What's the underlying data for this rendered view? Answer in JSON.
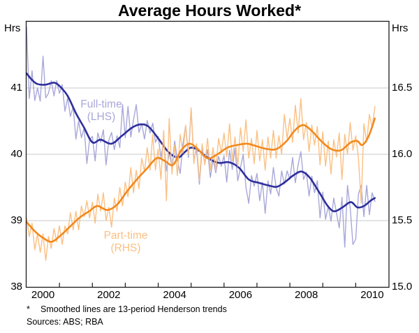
{
  "title": "Average Hours Worked*",
  "footnote": {
    "marker": "*",
    "text": "Smoothed lines are 13-period Henderson trends"
  },
  "sources": "Sources: ABS; RBA",
  "chart_data": {
    "type": "line",
    "title": "Average Hours Worked*",
    "grid": true,
    "legend_position": "none",
    "axis_left": {
      "unit": "Hrs",
      "min": 38,
      "max": 42,
      "gridlines": [
        39,
        40,
        41
      ],
      "tick_labels": [
        {
          "text": "41",
          "value": 41
        },
        {
          "text": "40",
          "value": 40
        },
        {
          "text": "39",
          "value": 39
        },
        {
          "text": "38",
          "value": 38
        }
      ]
    },
    "axis_right": {
      "unit": "Hrs",
      "min": 15.0,
      "max": 17.0,
      "tick_labels": [
        {
          "text": "16.5",
          "value": 16.5
        },
        {
          "text": "16.0",
          "value": 16.0
        },
        {
          "text": "15.5",
          "value": 15.5
        },
        {
          "text": "15.0",
          "value": 15.0
        }
      ]
    },
    "axis_x": {
      "min": 2000,
      "max": 2011,
      "ticks": [
        2001,
        2002,
        2003,
        2004,
        2005,
        2006,
        2007,
        2008,
        2009,
        2010
      ],
      "labels": [
        {
          "text": "2000",
          "pos": 2000.5
        },
        {
          "text": "2002",
          "pos": 2002.5
        },
        {
          "text": "2004",
          "pos": 2004.5
        },
        {
          "text": "2006",
          "pos": 2006.5
        },
        {
          "text": "2008",
          "pos": 2008.5
        },
        {
          "text": "2010",
          "pos": 2010.5
        }
      ]
    },
    "colors": {
      "fulltime_actual": "#a8a7d9",
      "fulltime_trend": "#2d2f9a",
      "parttime_actual": "#fbc083",
      "parttime_trend": "#f1891d",
      "gridline": "#c9c9c9",
      "frame": "#1a1a1a"
    },
    "series_labels": [
      {
        "line1": "Full-time",
        "line2": "(LHS)",
        "color": "#a8a7d9"
      },
      {
        "line1": "Part-time",
        "line2": "(RHS)",
        "color": "#fbc083"
      }
    ],
    "series": [
      {
        "name": "Full-time actual (monthly)",
        "axis": "left",
        "style": "raw",
        "color_key": "fulltime_actual",
        "width": 1.4,
        "x_start": 2000,
        "x_step_years": 0.0833333,
        "values": [
          41.92,
          40.84,
          41.26,
          40.81,
          41.0,
          40.8,
          41.48,
          40.85,
          40.92,
          41.11,
          40.88,
          41.11,
          40.92,
          41.05,
          40.65,
          40.85,
          40.57,
          40.72,
          40.23,
          40.5,
          40.25,
          40.4,
          39.86,
          40.22,
          40.27,
          39.9,
          40.32,
          40.18,
          40.37,
          39.84,
          40.21,
          40.33,
          40.07,
          40.28,
          40.1,
          40.75,
          40.25,
          40.72,
          40.26,
          40.52,
          40.75,
          40.33,
          40.46,
          40.23,
          40.51,
          40.32,
          40.47,
          40.18,
          40.27,
          39.95,
          40.21,
          39.75,
          40.03,
          39.8,
          40.2,
          39.92,
          39.71,
          40.15,
          40.43,
          39.95,
          40.68,
          39.92,
          40.08,
          39.55,
          40.09,
          39.86,
          40.07,
          39.65,
          39.93,
          39.72,
          39.97,
          39.82,
          39.98,
          39.58,
          40.06,
          39.77,
          40.09,
          39.6,
          39.8,
          40.0,
          39.5,
          39.26,
          39.68,
          39.52,
          39.71,
          39.3,
          39.58,
          39.11,
          39.6,
          39.4,
          39.8,
          39.49,
          39.37,
          39.75,
          39.55,
          39.75,
          39.62,
          39.95,
          39.57,
          39.84,
          40.04,
          39.62,
          39.73,
          39.37,
          39.67,
          39.42,
          39.6,
          39.04,
          39.43,
          39.02,
          39.22,
          38.99,
          39.34,
          39.11,
          38.89,
          39.35,
          38.6,
          39.53,
          39.19,
          38.64,
          38.72,
          39.4,
          39.53,
          39.06,
          39.53,
          39.09,
          39.42,
          39.29
        ]
      },
      {
        "name": "Full-time 13-period Henderson trend",
        "axis": "left",
        "style": "smooth",
        "color_key": "fulltime_trend",
        "width": 2.6,
        "points": [
          [
            2000.0,
            41.22
          ],
          [
            2000.17,
            41.12
          ],
          [
            2000.33,
            41.06
          ],
          [
            2000.58,
            41.05
          ],
          [
            2000.83,
            41.08
          ],
          [
            2001.0,
            41.03
          ],
          [
            2001.25,
            40.88
          ],
          [
            2001.5,
            40.62
          ],
          [
            2001.75,
            40.4
          ],
          [
            2002.0,
            40.18
          ],
          [
            2002.25,
            40.22
          ],
          [
            2002.58,
            40.16
          ],
          [
            2002.9,
            40.28
          ],
          [
            2003.2,
            40.4
          ],
          [
            2003.45,
            40.45
          ],
          [
            2003.7,
            40.42
          ],
          [
            2004.0,
            40.24
          ],
          [
            2004.3,
            40.04
          ],
          [
            2004.6,
            39.95
          ],
          [
            2004.8,
            40.03
          ],
          [
            2005.0,
            40.1
          ],
          [
            2005.25,
            40.05
          ],
          [
            2005.55,
            39.93
          ],
          [
            2005.85,
            39.87
          ],
          [
            2006.15,
            39.88
          ],
          [
            2006.45,
            39.8
          ],
          [
            2006.75,
            39.62
          ],
          [
            2007.05,
            39.57
          ],
          [
            2007.35,
            39.53
          ],
          [
            2007.6,
            39.51
          ],
          [
            2007.85,
            39.58
          ],
          [
            2008.1,
            39.68
          ],
          [
            2008.35,
            39.74
          ],
          [
            2008.6,
            39.65
          ],
          [
            2008.9,
            39.42
          ],
          [
            2009.15,
            39.22
          ],
          [
            2009.35,
            39.14
          ],
          [
            2009.6,
            39.2
          ],
          [
            2009.85,
            39.28
          ],
          [
            2010.05,
            39.2
          ],
          [
            2010.25,
            39.22
          ],
          [
            2010.45,
            39.3
          ],
          [
            2010.58,
            39.34
          ]
        ]
      },
      {
        "name": "Part-time actual (monthly)",
        "axis": "right",
        "style": "raw",
        "color_key": "parttime_actual",
        "width": 1.4,
        "x_start": 2000,
        "x_step_years": 0.0833333,
        "values": [
          15.52,
          15.38,
          15.48,
          15.28,
          15.4,
          15.26,
          15.4,
          15.2,
          15.38,
          15.29,
          15.44,
          15.34,
          15.46,
          15.32,
          15.46,
          15.4,
          15.56,
          15.43,
          15.57,
          15.43,
          15.61,
          15.53,
          15.65,
          15.52,
          15.64,
          15.48,
          15.7,
          15.57,
          15.71,
          15.5,
          15.6,
          15.45,
          15.67,
          15.57,
          15.75,
          15.61,
          15.79,
          15.68,
          15.9,
          15.71,
          15.88,
          15.74,
          15.97,
          15.87,
          16.05,
          15.88,
          16.15,
          15.88,
          16.04,
          15.81,
          16.18,
          15.65,
          16.27,
          15.85,
          16.07,
          15.84,
          16.15,
          16.01,
          16.22,
          16.0,
          16.35,
          15.93,
          16.08,
          15.8,
          16.08,
          15.92,
          16.12,
          15.88,
          16.05,
          15.88,
          16.12,
          16.01,
          16.16,
          15.98,
          16.23,
          15.95,
          16.13,
          15.91,
          16.2,
          16.02,
          16.26,
          15.97,
          16.12,
          15.93,
          16.18,
          15.95,
          16.11,
          15.88,
          16.13,
          15.97,
          16.18,
          15.97,
          16.14,
          16.0,
          16.3,
          16.12,
          16.27,
          16.09,
          16.37,
          16.16,
          16.42,
          16.11,
          16.24,
          16.02,
          16.22,
          16.07,
          16.21,
          15.92,
          16.17,
          15.91,
          16.1,
          15.85,
          16.11,
          15.98,
          16.16,
          15.81,
          16.15,
          16.0,
          16.24,
          16.03,
          16.14,
          15.97,
          15.63,
          16.23,
          16.09,
          16.3,
          16.2,
          16.36
        ]
      },
      {
        "name": "Part-time 13-period Henderson trend",
        "axis": "right",
        "style": "smooth",
        "color_key": "parttime_trend",
        "width": 2.6,
        "points": [
          [
            2000.0,
            15.49
          ],
          [
            2000.25,
            15.42
          ],
          [
            2000.5,
            15.37
          ],
          [
            2000.75,
            15.34
          ],
          [
            2001.0,
            15.38
          ],
          [
            2001.3,
            15.45
          ],
          [
            2001.6,
            15.52
          ],
          [
            2001.9,
            15.57
          ],
          [
            2002.15,
            15.61
          ],
          [
            2002.45,
            15.58
          ],
          [
            2002.75,
            15.62
          ],
          [
            2003.05,
            15.72
          ],
          [
            2003.35,
            15.81
          ],
          [
            2003.65,
            15.89
          ],
          [
            2003.95,
            15.97
          ],
          [
            2004.2,
            15.95
          ],
          [
            2004.45,
            15.92
          ],
          [
            2004.7,
            16.03
          ],
          [
            2004.95,
            16.08
          ],
          [
            2005.2,
            16.04
          ],
          [
            2005.5,
            15.97
          ],
          [
            2005.8,
            16.0
          ],
          [
            2006.1,
            16.05
          ],
          [
            2006.4,
            16.07
          ],
          [
            2006.7,
            16.08
          ],
          [
            2007.0,
            16.06
          ],
          [
            2007.3,
            16.04
          ],
          [
            2007.6,
            16.04
          ],
          [
            2007.9,
            16.1
          ],
          [
            2008.15,
            16.18
          ],
          [
            2008.4,
            16.22
          ],
          [
            2008.65,
            16.18
          ],
          [
            2008.95,
            16.1
          ],
          [
            2009.25,
            16.04
          ],
          [
            2009.55,
            16.03
          ],
          [
            2009.85,
            16.09
          ],
          [
            2010.05,
            16.1
          ],
          [
            2010.2,
            16.07
          ],
          [
            2010.4,
            16.14
          ],
          [
            2010.58,
            16.27
          ]
        ]
      }
    ]
  }
}
